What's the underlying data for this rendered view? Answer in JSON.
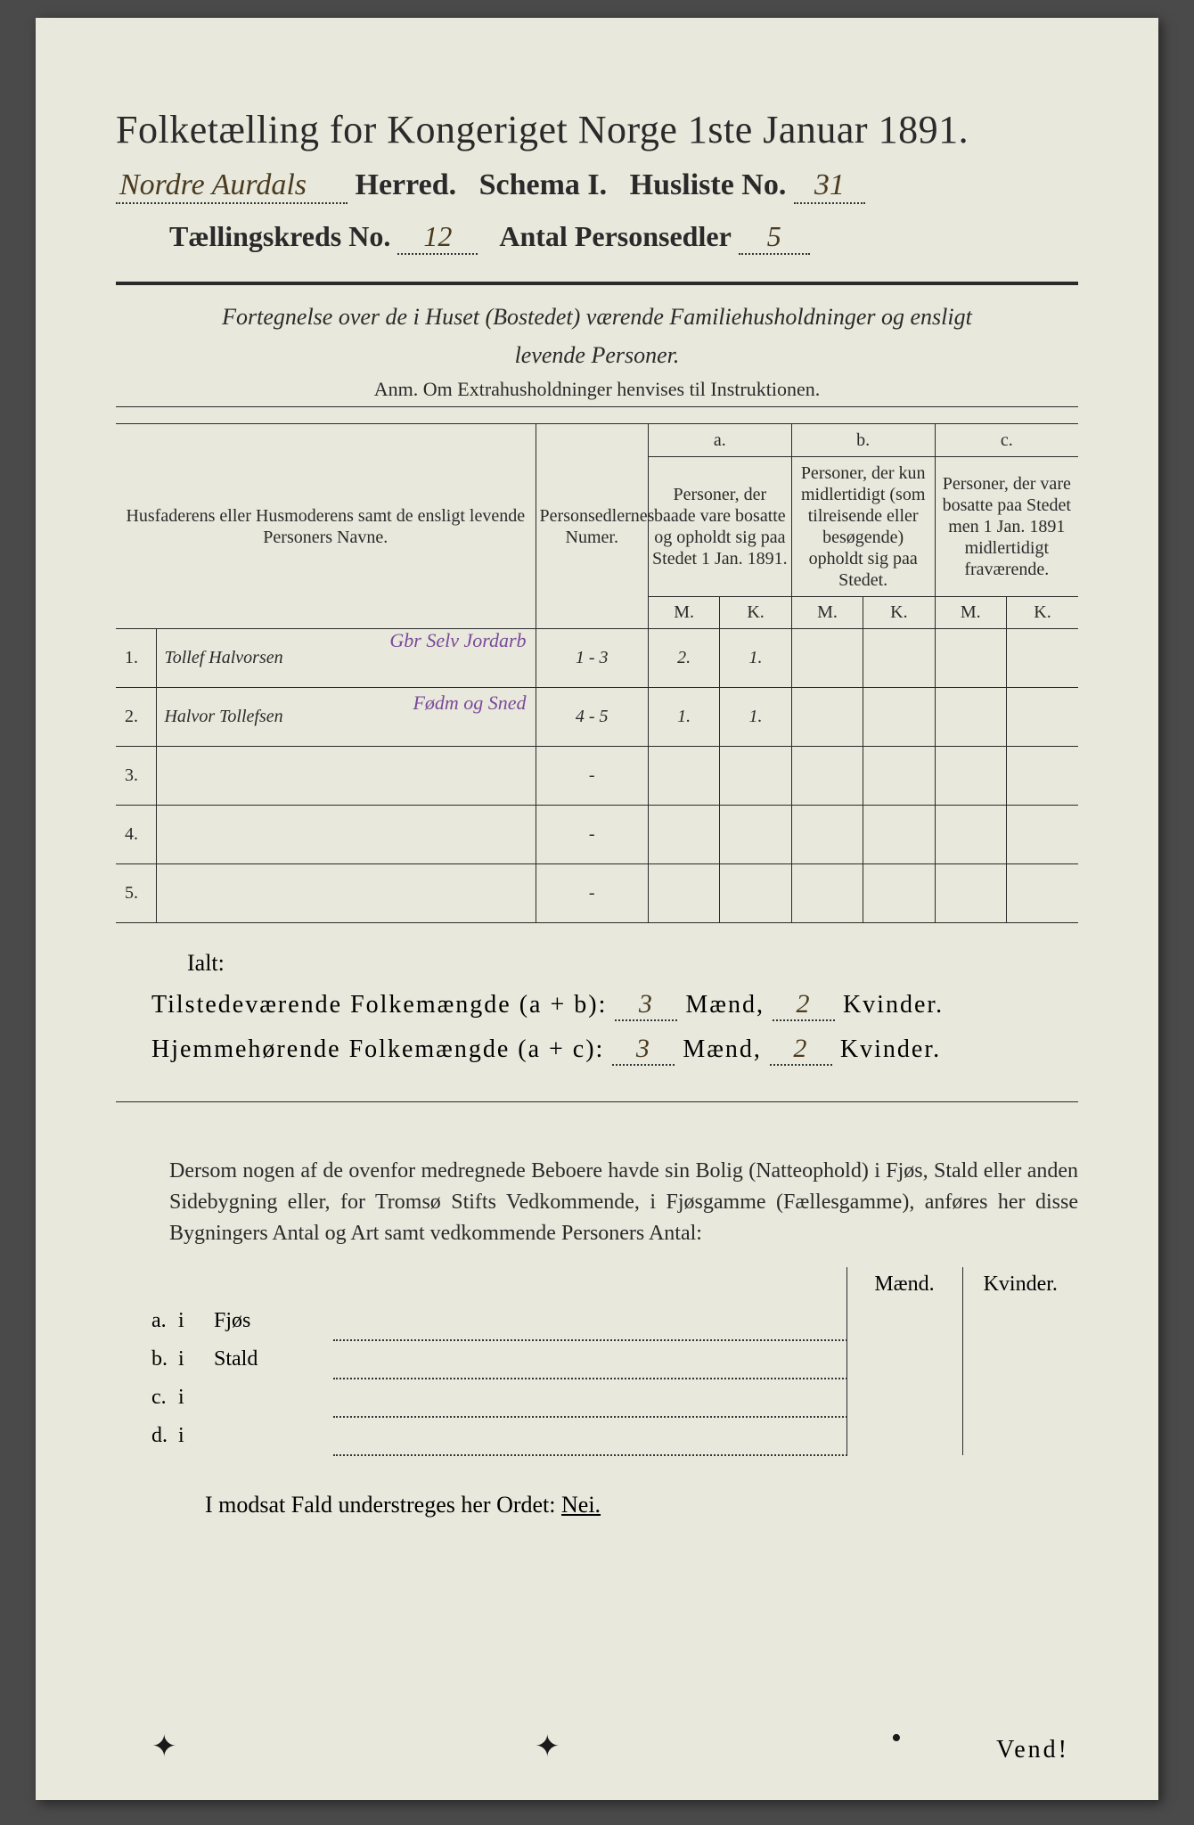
{
  "title": "Folketælling for Kongeriget Norge 1ste Januar 1891.",
  "header": {
    "herred_hand": "Nordre Aurdals",
    "herred_label": "Herred.",
    "schema_label": "Schema I.",
    "husliste_label": "Husliste No.",
    "husliste_no": "31",
    "kreds_label": "Tællingskreds No.",
    "kreds_no": "12",
    "antal_label": "Antal Personsedler",
    "antal_val": "5"
  },
  "fort1": "Fortegnelse over de i Huset (Bostedet) værende Familiehusholdninger og ensligt",
  "fort2": "levende Personer.",
  "anm": "Anm.  Om Extrahusholdninger henvises til Instruktionen.",
  "cols": {
    "name": "Husfaderens eller Husmoderens samt de ensligt levende Personers Navne.",
    "num": "Personsedlernes Numer.",
    "a_label": "a.",
    "a_text": "Personer, der baade vare bosatte og opholdt sig paa Stedet 1 Jan. 1891.",
    "b_label": "b.",
    "b_text": "Personer, der kun midlertidigt (som tilreisende eller besøgende) opholdt sig paa Stedet.",
    "c_label": "c.",
    "c_text": "Personer, der vare bosatte paa Stedet men 1 Jan. 1891 midlertidigt fraværende.",
    "M": "M.",
    "K": "K."
  },
  "rows": [
    {
      "n": "1.",
      "name": "Tollef Halvorsen",
      "num": "1 - 3",
      "aM": "2.",
      "aK": "1.",
      "note": "Gbr Selv Jordarb"
    },
    {
      "n": "2.",
      "name": "Halvor Tollefsen",
      "num": "4 - 5",
      "aM": "1.",
      "aK": "1.",
      "note": "Fødm og Sned"
    },
    {
      "n": "3.",
      "name": "",
      "num": "-",
      "aM": "",
      "aK": "",
      "note": ""
    },
    {
      "n": "4.",
      "name": "",
      "num": "-",
      "aM": "",
      "aK": "",
      "note": ""
    },
    {
      "n": "5.",
      "name": "",
      "num": "-",
      "aM": "",
      "aK": "",
      "note": ""
    }
  ],
  "ialt": "Ialt:",
  "tot": {
    "line1_a": "Tilstedeværende Folkemængde (a + b):",
    "line2_a": "Hjemmehørende Folkemængde (a + c):",
    "maend": "Mænd,",
    "kvinder": "Kvinder.",
    "m1": "3",
    "k1": "2",
    "m2": "3",
    "k2": "2"
  },
  "para": "Dersom nogen af de ovenfor medregnede Beboere havde sin Bolig (Natteophold) i Fjøs, Stald eller anden Sidebygning eller, for Tromsø Stifts Vedkommende, i Fjøsgamme (Fællesgamme), anføres her disse Bygningers Antal og Art samt vedkommende Personers Antal:",
  "fjos": {
    "Maend": "Mænd.",
    "Kvinder": "Kvinder.",
    "rows": [
      {
        "l": "a.",
        "i": "i",
        "t": "Fjøs"
      },
      {
        "l": "b.",
        "i": "i",
        "t": "Stald"
      },
      {
        "l": "c.",
        "i": "i",
        "t": ""
      },
      {
        "l": "d.",
        "i": "i",
        "t": ""
      }
    ]
  },
  "modsat_a": "I modsat Fald understreges her Ordet:",
  "modsat_b": "Nei.",
  "vend": "Vend!",
  "colors": {
    "paper": "#e8e9dc",
    "ink": "#2a2a2a",
    "hand_brown": "#4b3a1f",
    "hand_purple": "#7a4a9a",
    "bg": "#4a4a4a"
  }
}
